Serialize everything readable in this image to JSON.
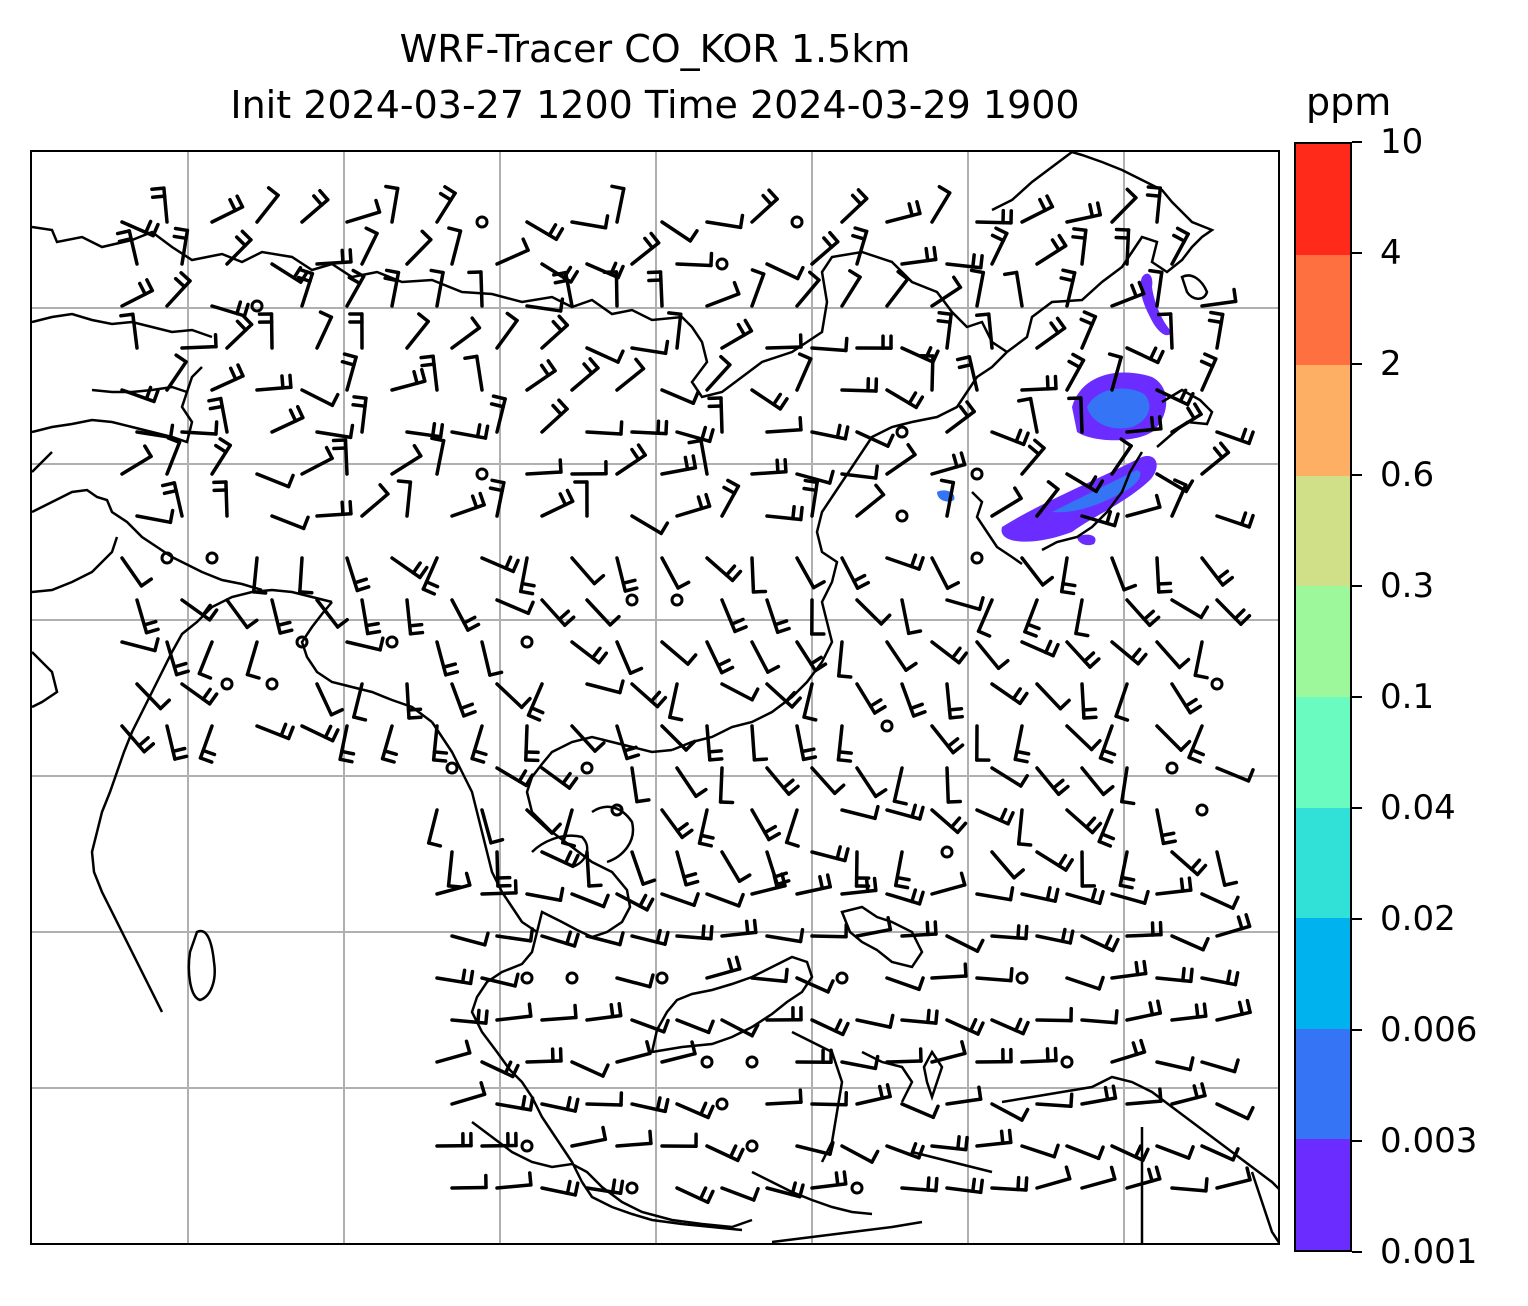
{
  "title": {
    "line1": "WRF-Tracer CO_KOR 1.5km",
    "line2": "Init 2024-03-27 1200 Time 2024-03-29 1900"
  },
  "colorbar": {
    "unit": "ppm",
    "levels": [
      "0.001",
      "0.003",
      "0.006",
      "0.02",
      "0.04",
      "0.1",
      "0.3",
      "0.6",
      "2",
      "4",
      "10"
    ],
    "colors": [
      "#6a2cff",
      "#3575f5",
      "#00b3ee",
      "#31e0d6",
      "#6afbc0",
      "#9cf89a",
      "#cfe088",
      "#fdb064",
      "#ff7040",
      "#ff2a1a"
    ]
  },
  "map": {
    "gridlines": "on",
    "gridline_color": "#b0b0b0",
    "plume_color": "#6a2cff",
    "plume_core_color": "#3575f5"
  }
}
